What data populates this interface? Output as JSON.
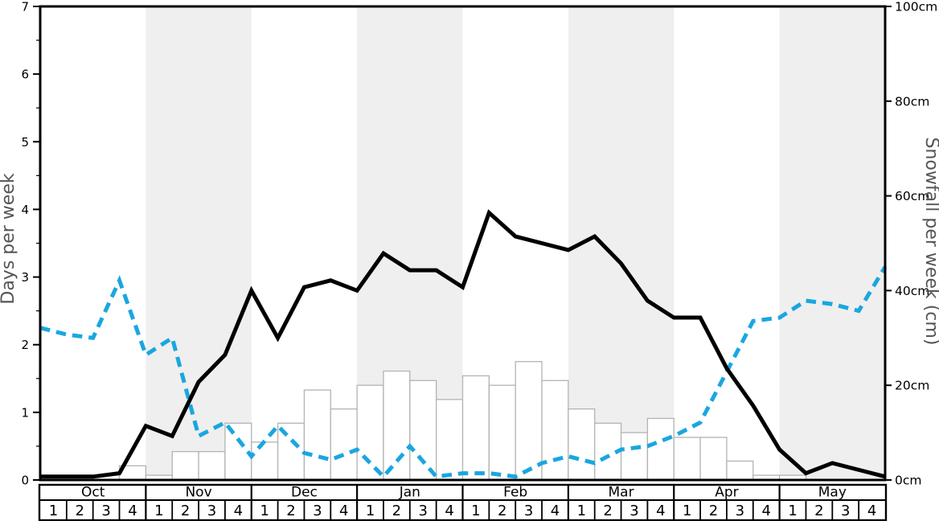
{
  "chart_data": {
    "type": "line",
    "description_of_point_spacing": "line vertices at the 33 week boundaries of 32 weeks; bars occupy one week each",
    "months": [
      "Oct",
      "Nov",
      "Dec",
      "Jan",
      "Feb",
      "Mar",
      "Apr",
      "May"
    ],
    "week_labels": [
      "1",
      "2",
      "3",
      "4"
    ],
    "shaded_month_indices": [
      1,
      3,
      5,
      7
    ],
    "left_axis": {
      "label": "Days per week",
      "min": 0,
      "max": 7,
      "major_step": 1,
      "minor_step": 0.5,
      "tick_labels": [
        "0",
        "1",
        "2",
        "3",
        "4",
        "5",
        "6",
        "7"
      ]
    },
    "right_axis": {
      "label": "Snowfall per week (cm)",
      "min": 0,
      "max": 100,
      "major_step": 20,
      "tick_labels": [
        "0cm",
        "20cm",
        "40cm",
        "60cm",
        "80cm",
        "100cm"
      ]
    },
    "series": [
      {
        "name": "snowfall-per-week-bars",
        "type": "bar",
        "axis": "right",
        "unit": "cm",
        "values": [
          0,
          0,
          1,
          3,
          1,
          6,
          6,
          12,
          8,
          12,
          19,
          15,
          20,
          23,
          21,
          17,
          22,
          20,
          25,
          21,
          15,
          12,
          10,
          13,
          9,
          9,
          4,
          1,
          1,
          0,
          0,
          0
        ]
      },
      {
        "name": "days-per-week-solid-line",
        "type": "line",
        "axis": "left",
        "style": "solid",
        "values": [
          0.05,
          0.05,
          0.05,
          0.1,
          0.8,
          0.65,
          1.45,
          1.85,
          2.8,
          2.1,
          2.85,
          2.95,
          2.8,
          3.35,
          3.1,
          3.1,
          2.85,
          3.95,
          3.6,
          3.5,
          3.4,
          3.6,
          3.2,
          2.65,
          2.4,
          2.4,
          1.65,
          1.1,
          0.45,
          0.1,
          0.25,
          0.15,
          0.05
        ]
      },
      {
        "name": "days-per-week-dashed-line",
        "type": "line",
        "axis": "left",
        "style": "dashed",
        "values": [
          2.25,
          2.15,
          2.1,
          2.95,
          1.85,
          2.1,
          0.65,
          0.85,
          0.35,
          0.8,
          0.4,
          0.3,
          0.45,
          0.05,
          0.5,
          0.05,
          0.1,
          0.1,
          0.05,
          0.25,
          0.35,
          0.25,
          0.45,
          0.5,
          0.65,
          0.85,
          1.6,
          2.35,
          2.4,
          2.65,
          2.6,
          2.5,
          3.15
        ]
      }
    ],
    "colors": {
      "solid_line": "#000000",
      "dashed_line": "#1aa6e0",
      "month_band": "#efefef",
      "bar_fill": "#ffffff",
      "bar_border": "#b3b3b3",
      "frame": "#000000",
      "axis_title_text": "#555555"
    },
    "grid": false,
    "legend": "none"
  }
}
